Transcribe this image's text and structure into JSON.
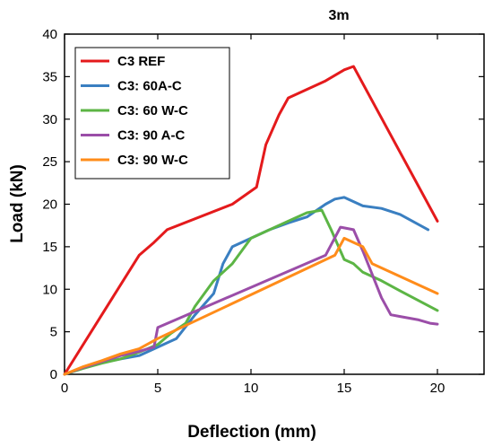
{
  "chart_data": {
    "type": "line",
    "title": "3m",
    "xlabel": "Deflection (mm)",
    "ylabel": "Load (kN)",
    "xlim": [
      0,
      22.5
    ],
    "ylim": [
      0,
      40
    ],
    "xticks": [
      0,
      5,
      10,
      15,
      20
    ],
    "yticks": [
      0,
      5,
      10,
      15,
      20,
      25,
      30,
      35,
      40
    ],
    "grid": false,
    "legend_position": "top-left",
    "series": [
      {
        "name": "C3 REF",
        "color": "#e41a1c",
        "x": [
          0,
          4,
          4.8,
          5.5,
          9,
          10.3,
          10.8,
          11.5,
          12,
          13.5,
          14,
          15,
          15.5,
          20
        ],
        "y": [
          0,
          14,
          15.5,
          17,
          20,
          22,
          27,
          30.5,
          32.5,
          34,
          34.5,
          35.8,
          36.2,
          18
        ]
      },
      {
        "name": "C3: 60A-C",
        "color": "#3a7fc1",
        "x": [
          0,
          1,
          2,
          3,
          4,
          5,
          6,
          7,
          8,
          8.5,
          9,
          10,
          11,
          12,
          13,
          14,
          14.5,
          15,
          16,
          17,
          18,
          19.5
        ],
        "y": [
          0,
          0.8,
          1.4,
          1.8,
          2.2,
          3.2,
          4.2,
          7,
          9.5,
          13,
          15,
          16,
          17,
          17.8,
          18.5,
          20,
          20.6,
          20.8,
          19.8,
          19.5,
          18.8,
          17
        ]
      },
      {
        "name": "C3: 60 W-C",
        "color": "#5cb545",
        "x": [
          0,
          1,
          2,
          3,
          4,
          5,
          5.7,
          6.5,
          7,
          8,
          9,
          10,
          11,
          12,
          13,
          13.8,
          14.3,
          15,
          15.5,
          16,
          17,
          18,
          20
        ],
        "y": [
          0,
          0.7,
          1.3,
          1.8,
          2.6,
          3.5,
          4.8,
          6,
          8,
          11,
          13,
          16,
          17,
          18,
          19,
          19.3,
          17,
          13.5,
          13,
          12,
          11,
          9.8,
          7.5
        ]
      },
      {
        "name": "C3: 90 A-C",
        "color": "#9b4ea8",
        "x": [
          0,
          1,
          2,
          3,
          4,
          4.8,
          5,
          14,
          14.8,
          15.5,
          16,
          17,
          17.5,
          18,
          19,
          19.6,
          20
        ],
        "y": [
          0,
          0.8,
          1.5,
          2.2,
          2.7,
          3.2,
          5.5,
          14,
          17.3,
          17,
          14.5,
          9,
          7,
          6.8,
          6.4,
          6,
          5.9
        ]
      },
      {
        "name": "C3: 90 W-C",
        "color": "#ff8c1a",
        "x": [
          0,
          1,
          2,
          3,
          4,
          5,
          14.5,
          15,
          16,
          16.5,
          20
        ],
        "y": [
          0,
          0.9,
          1.6,
          2.4,
          3.0,
          4.2,
          14,
          16,
          15,
          13,
          9.5
        ]
      }
    ]
  }
}
